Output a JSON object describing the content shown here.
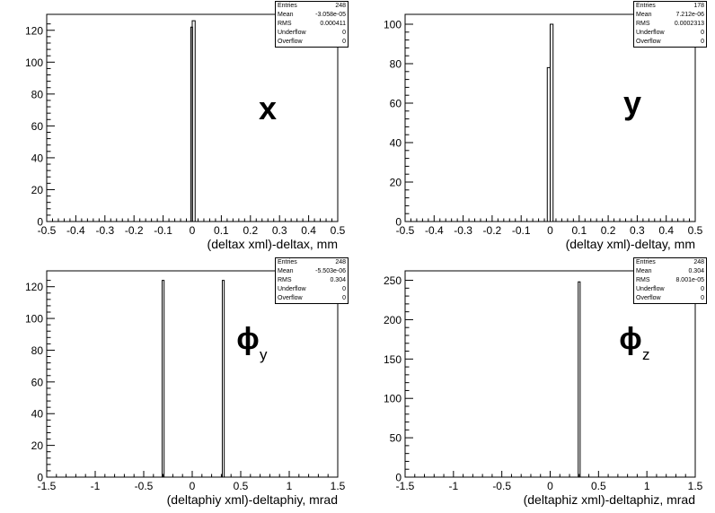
{
  "chart_data": [
    {
      "type": "bar",
      "xlabel": "(deltax xml)-deltax, mm",
      "xlim": [
        -0.5,
        0.5
      ],
      "ylim": [
        0,
        130
      ],
      "xticks": [
        "-0.5",
        "-0.4",
        "-0.3",
        "-0.2",
        "-0.1",
        "0",
        "0.1",
        "0.2",
        "0.3",
        "0.4",
        "0.5"
      ],
      "yticks": [
        "0",
        "20",
        "40",
        "60",
        "80",
        "100",
        "120"
      ],
      "bins": [
        {
          "x0": -0.005,
          "x1": 0.0,
          "value": 122
        },
        {
          "x0": 0.0,
          "x1": 0.01,
          "value": 126
        }
      ],
      "annotation": "x",
      "annotation_sub": "",
      "stats": {
        "labels": [
          "Entries",
          "Mean",
          "RMS",
          "Underflow",
          "Overflow"
        ],
        "values": [
          "248",
          "-3.058e-05",
          "0.000411",
          "0",
          "0"
        ]
      }
    },
    {
      "type": "bar",
      "xlabel": "(deltay xml)-deltay, mm",
      "xlim": [
        -0.5,
        0.5
      ],
      "ylim": [
        0,
        105
      ],
      "xticks": [
        "-0.5",
        "-0.4",
        "-0.3",
        "-0.2",
        "-0.1",
        "0",
        "0.1",
        "0.2",
        "0.3",
        "0.4",
        "0.5"
      ],
      "yticks": [
        "0",
        "20",
        "40",
        "60",
        "80",
        "100"
      ],
      "bins": [
        {
          "x0": -0.01,
          "x1": 0.0,
          "value": 78
        },
        {
          "x0": 0.0,
          "x1": 0.01,
          "value": 100
        }
      ],
      "annotation": "y",
      "annotation_sub": "",
      "stats": {
        "labels": [
          "Entries",
          "Mean",
          "RMS",
          "Underflow",
          "Overflow"
        ],
        "values": [
          "178",
          "7.212e-06",
          "0.0002313",
          "0",
          "0"
        ]
      }
    },
    {
      "type": "bar",
      "xlabel": "(deltaphiy xml)-deltaphiy, mrad",
      "xlim": [
        -1.5,
        1.5
      ],
      "ylim": [
        0,
        130
      ],
      "xticks": [
        "-1.5",
        "-1",
        "-0.5",
        "0",
        "0.5",
        "1",
        "1.5"
      ],
      "yticks": [
        "0",
        "20",
        "40",
        "60",
        "80",
        "100",
        "120"
      ],
      "bins": [
        {
          "x0": -0.31,
          "x1": -0.29,
          "value": 124
        },
        {
          "x0": 0.31,
          "x1": 0.33,
          "value": 124
        }
      ],
      "annotation": "ϕ",
      "annotation_sub": "y",
      "stats": {
        "labels": [
          "Entries",
          "Mean",
          "RMS",
          "Underflow",
          "Overflow"
        ],
        "values": [
          "248",
          "-5.503e-06",
          "0.304",
          "0",
          "0"
        ]
      }
    },
    {
      "type": "bar",
      "xlabel": "(deltaphiz xml)-deltaphiz, mrad",
      "xlim": [
        -1.5,
        1.5
      ],
      "ylim": [
        0,
        262
      ],
      "xticks": [
        "-1.5",
        "-1",
        "-0.5",
        "0",
        "0.5",
        "1",
        "1.5"
      ],
      "yticks": [
        "0",
        "50",
        "100",
        "150",
        "200",
        "250"
      ],
      "bins": [
        {
          "x0": 0.29,
          "x1": 0.31,
          "value": 248
        }
      ],
      "annotation": "ϕ",
      "annotation_sub": "z",
      "stats": {
        "labels": [
          "Entries",
          "Mean",
          "RMS",
          "Underflow",
          "Overflow"
        ],
        "values": [
          "248",
          "0.304",
          "8.001e-05",
          "0",
          "0"
        ]
      }
    }
  ]
}
